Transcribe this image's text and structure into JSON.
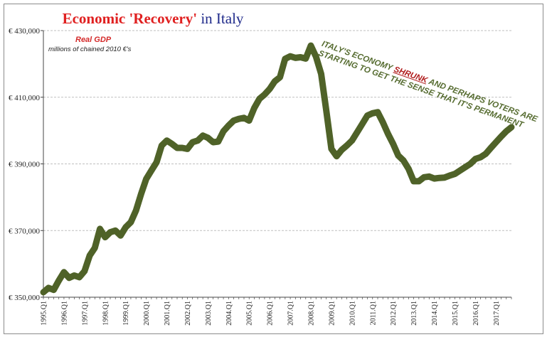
{
  "title": {
    "part1": "Economic 'Recovery'",
    "part2": "in Italy"
  },
  "annotation": {
    "line1_pre": "ITALY'S ECONOMY",
    "line1_highlight": "SHRUNK",
    "line1_post": "AND PERHAPS VOTERS ARE",
    "line2": "STARTING TO GET THE SENSE THAT IT'S PERMANENT"
  },
  "colors": {
    "line": "#4f6228",
    "title_red": "#e02020",
    "title_blue": "#1f2a8a",
    "grid": "#bfbfbf"
  },
  "chart_data": {
    "type": "line",
    "title": "Economic 'Recovery' in Italy",
    "legend": {
      "name": "Real GDP",
      "subtitle": "millions of chained 2010 €'s"
    },
    "ylim": [
      350000,
      430000
    ],
    "yticks": [
      "€ 350,000",
      "€ 370,000",
      "€ 390,000",
      "€ 410,000",
      "€ 430,000"
    ],
    "ytick_values": [
      350000,
      370000,
      390000,
      410000,
      430000
    ],
    "grid": true,
    "x_start": 1995.0,
    "x_end": 2017.75,
    "xticks": [
      "1995.Q1",
      "1996.Q1",
      "1997.Q1",
      "1998.Q1",
      "1999.Q1",
      "2000.Q1",
      "2001.Q1",
      "2002.Q1",
      "2003.Q1",
      "2004.Q1",
      "2005.Q1",
      "2006.Q1",
      "2007.Q1",
      "2008.Q1",
      "2009.Q1",
      "2010.Q1",
      "2011.Q1",
      "2012.Q1",
      "2013.Q1",
      "2014.Q1",
      "2015.Q1",
      "2016.Q1",
      "2017.Q1"
    ],
    "series": [
      {
        "name": "Real GDP",
        "x": [
          1995.0,
          1995.25,
          1995.5,
          1995.75,
          1996.0,
          1996.25,
          1996.5,
          1996.75,
          1997.0,
          1997.25,
          1997.5,
          1997.75,
          1998.0,
          1998.25,
          1998.5,
          1998.75,
          1999.0,
          1999.25,
          1999.5,
          1999.75,
          2000.0,
          2000.25,
          2000.5,
          2000.75,
          2001.0,
          2001.25,
          2001.5,
          2001.75,
          2002.0,
          2002.25,
          2002.5,
          2002.75,
          2003.0,
          2003.25,
          2003.5,
          2003.75,
          2004.0,
          2004.25,
          2004.5,
          2004.75,
          2005.0,
          2005.25,
          2005.5,
          2005.75,
          2006.0,
          2006.25,
          2006.5,
          2006.75,
          2007.0,
          2007.25,
          2007.5,
          2007.75,
          2008.0,
          2008.25,
          2008.5,
          2008.75,
          2009.0,
          2009.25,
          2009.5,
          2009.75,
          2010.0,
          2010.25,
          2010.5,
          2010.75,
          2011.0,
          2011.25,
          2011.5,
          2011.75,
          2012.0,
          2012.25,
          2012.5,
          2012.75,
          2013.0,
          2013.25,
          2013.5,
          2013.75,
          2014.0,
          2014.25,
          2014.5,
          2014.75,
          2015.0,
          2015.25,
          2015.5,
          2015.75,
          2016.0,
          2016.25,
          2016.5,
          2016.75,
          2017.0,
          2017.25,
          2017.5,
          2017.75
        ],
        "values": [
          351500,
          352800,
          352200,
          355000,
          357500,
          355800,
          356500,
          356000,
          357800,
          362500,
          364800,
          370500,
          368000,
          369500,
          370000,
          368500,
          371000,
          372500,
          376000,
          381000,
          385500,
          388000,
          390500,
          395500,
          397000,
          396000,
          394800,
          394800,
          394500,
          396500,
          397000,
          398500,
          397800,
          396500,
          396700,
          399800,
          401500,
          403000,
          403500,
          403800,
          403000,
          406800,
          409500,
          410800,
          412500,
          414800,
          416000,
          421500,
          422300,
          421800,
          422000,
          421600,
          425500,
          422200,
          417000,
          406000,
          394500,
          392300,
          394200,
          395500,
          397000,
          399500,
          402000,
          404500,
          405200,
          405500,
          402500,
          399000,
          396000,
          392500,
          391000,
          388500,
          384800,
          384800,
          386000,
          386200,
          385600,
          385800,
          385900,
          386500,
          387000,
          388000,
          389000,
          390000,
          391500,
          392000,
          393000,
          394800,
          396500,
          398200,
          399800,
          401000
        ]
      }
    ]
  }
}
